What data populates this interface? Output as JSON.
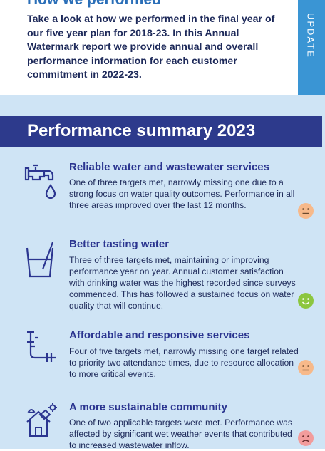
{
  "intro": {
    "title": "How we performed",
    "text": "Take a look at how we performed in the final year of our five year plan for 2018-23. In this Annual Watermark report we provide annual and overall performance information for each customer commitment in 2022-23."
  },
  "side_tab": {
    "label": "UPDATE"
  },
  "summary": {
    "title": "Performance summary 2023",
    "items": [
      {
        "icon": "tap-icon",
        "title": "Reliable water and wastewater services",
        "text": "One of three targets met, narrowly missing one due to a strong focus on water quality outcomes. Performance in all three areas improved over the last 12 months.",
        "rating": "neutral-face",
        "rating_color": "#f7b98a"
      },
      {
        "icon": "water-glass-icon",
        "title": "Better tasting water",
        "text": "Three of three targets met, maintaining or improving performance year on year. Annual customer satisfaction with drinking water was the highest recorded since surveys commenced. This has followed a sustained focus on water quality that will continue.",
        "rating": "happy-face",
        "rating_color": "#8cc63f"
      },
      {
        "icon": "pipe-icon",
        "title": "Affordable and responsive services",
        "text": "Four of five targets met, narrowly missing one target related to priority two attendance times, due to resource allocation to more critical events.",
        "rating": "neutral-face",
        "rating_color": "#f7b98a"
      },
      {
        "icon": "sustainable-home-icon",
        "title": "A more sustainable community",
        "text": "One of two applicable targets were met. Performance was affected by significant wet weather events that contributed to increased wastewater inflow.",
        "rating": "sad-face",
        "rating_color": "#f29c9c"
      }
    ]
  }
}
